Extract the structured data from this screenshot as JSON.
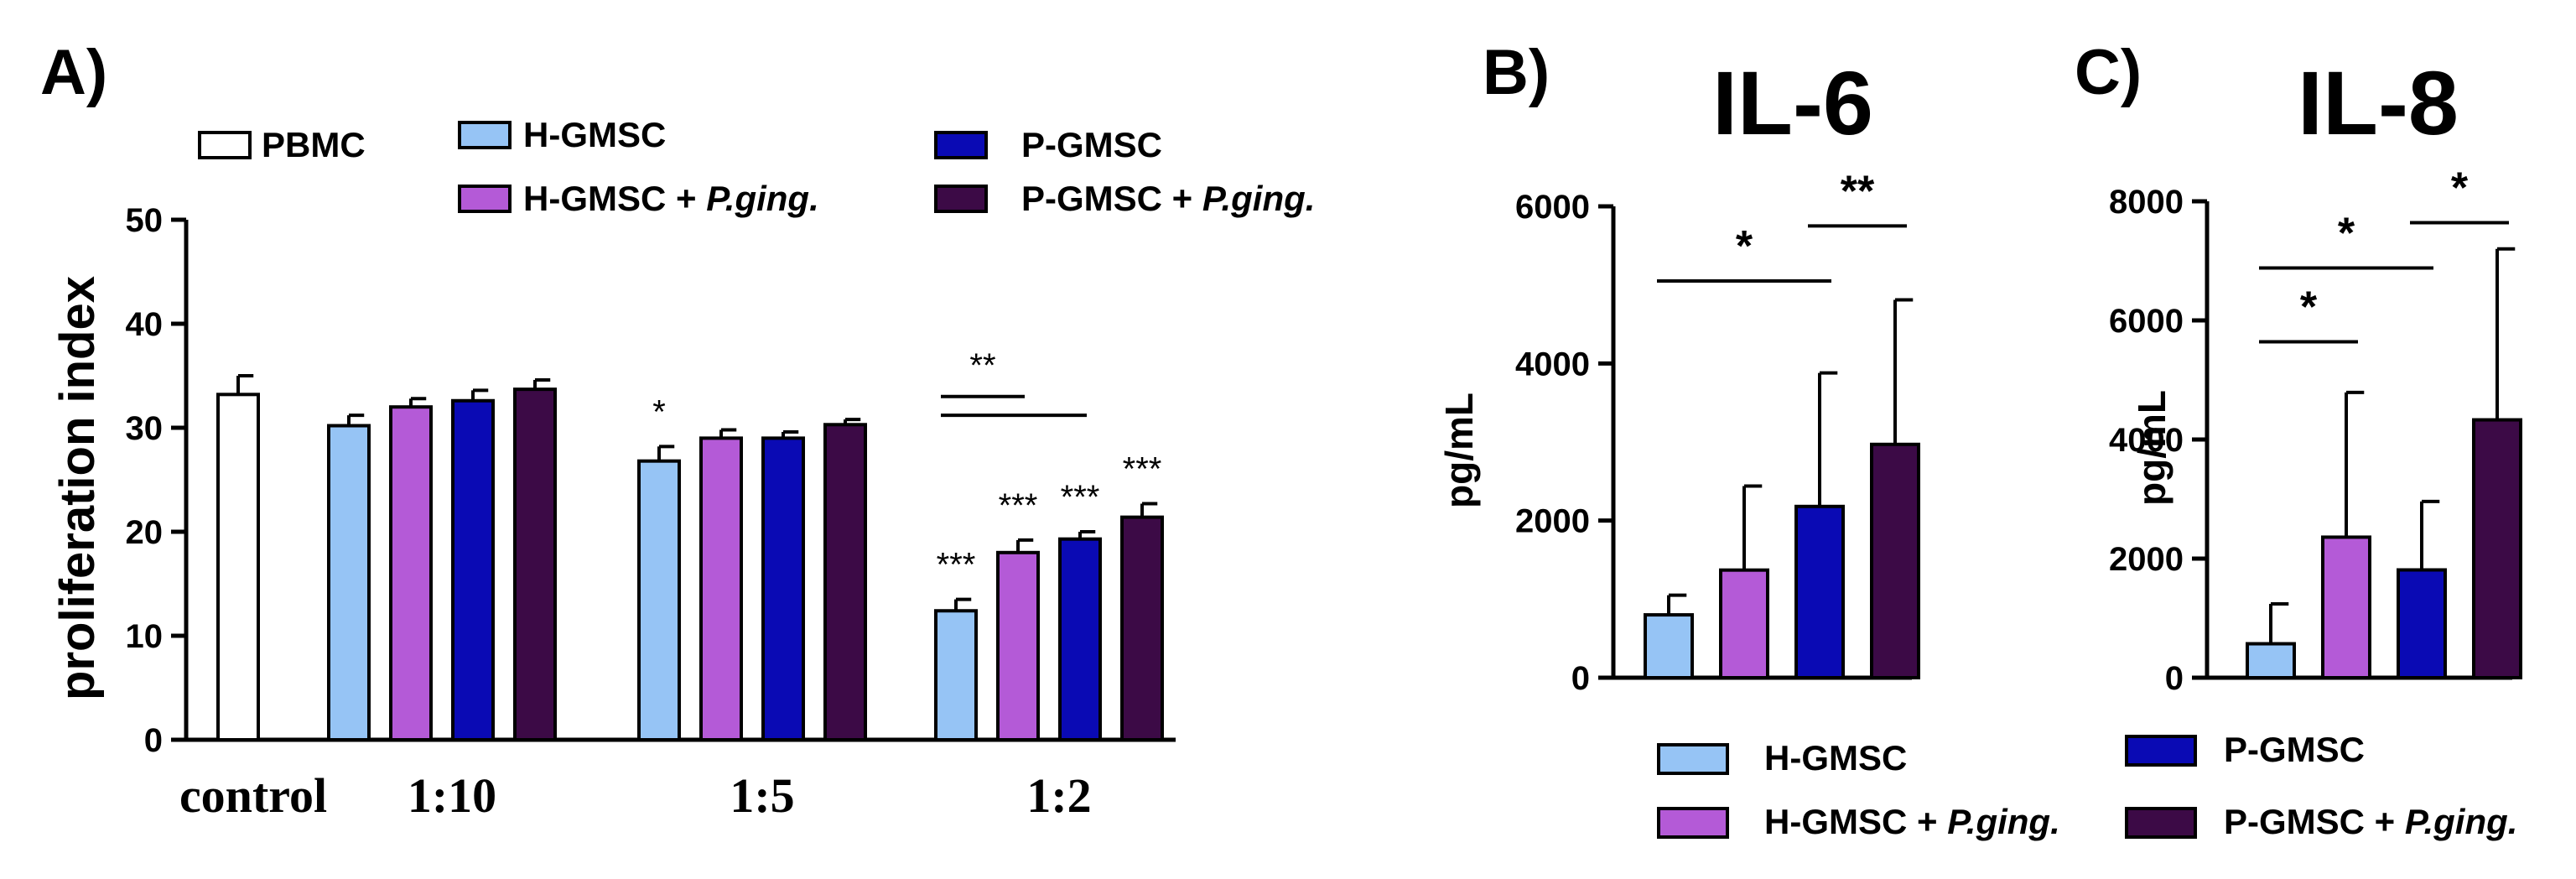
{
  "colors": {
    "PBMC": "#ffffff",
    "H-GMSC": "#96c4f5",
    "H-GMSC + P.ging.": "#b45ad7",
    "P-GMSC": "#0a0ab4",
    "P-GMSC + P.ging.": "#3c0a46"
  },
  "panels": {
    "A": "A)",
    "B": "B)",
    "C": "C)"
  },
  "legend_A": [
    {
      "key": "PBMC",
      "label": "PBMC",
      "italic": ""
    },
    {
      "key": "H-GMSC",
      "label": "H-GMSC",
      "italic": ""
    },
    {
      "key": "H-GMSC + P.ging.",
      "label": "H-GMSC + ",
      "italic": "P.ging."
    },
    {
      "key": "P-GMSC",
      "label": "P-GMSC",
      "italic": ""
    },
    {
      "key": "P-GMSC + P.ging.",
      "label": "P-GMSC + ",
      "italic": "P.ging."
    }
  ],
  "legend_BC": [
    {
      "key": "H-GMSC",
      "label": "H-GMSC",
      "italic": ""
    },
    {
      "key": "H-GMSC + P.ging.",
      "label": "H-GMSC + ",
      "italic": "P.ging."
    },
    {
      "key": "P-GMSC",
      "label": "P-GMSC",
      "italic": ""
    },
    {
      "key": "P-GMSC + P.ging.",
      "label": "P-GMSC + ",
      "italic": "P.ging."
    }
  ],
  "chart_data": [
    {
      "id": "A",
      "type": "bar",
      "title": "",
      "xlabel": "",
      "ylabel": "proliferation index",
      "ylim": [
        0,
        50
      ],
      "yticks": [
        0,
        10,
        20,
        30,
        40,
        50
      ],
      "tick_labels": [
        "0",
        "10",
        "20",
        "30",
        "40",
        "50"
      ],
      "categories": [
        "control",
        "1:10",
        "1:5",
        "1:2"
      ],
      "groups": [
        {
          "category": "control",
          "bars": [
            {
              "series": "PBMC",
              "value": 33.2,
              "err": 1.8,
              "sig": ""
            }
          ]
        },
        {
          "category": "1:10",
          "bars": [
            {
              "series": "H-GMSC",
              "value": 30.2,
              "err": 1.0,
              "sig": ""
            },
            {
              "series": "H-GMSC + P.ging.",
              "value": 32.0,
              "err": 0.8,
              "sig": ""
            },
            {
              "series": "P-GMSC",
              "value": 32.6,
              "err": 1.0,
              "sig": ""
            },
            {
              "series": "P-GMSC + P.ging.",
              "value": 33.7,
              "err": 0.9,
              "sig": ""
            }
          ]
        },
        {
          "category": "1:5",
          "bars": [
            {
              "series": "H-GMSC",
              "value": 26.8,
              "err": 1.4,
              "sig": "*"
            },
            {
              "series": "H-GMSC + P.ging.",
              "value": 29.0,
              "err": 0.8,
              "sig": ""
            },
            {
              "series": "P-GMSC",
              "value": 29.0,
              "err": 0.6,
              "sig": ""
            },
            {
              "series": "P-GMSC + P.ging.",
              "value": 30.3,
              "err": 0.5,
              "sig": ""
            }
          ]
        },
        {
          "category": "1:2",
          "bars": [
            {
              "series": "H-GMSC",
              "value": 12.4,
              "err": 1.1,
              "sig": "***"
            },
            {
              "series": "H-GMSC + P.ging.",
              "value": 18.0,
              "err": 1.2,
              "sig": "***"
            },
            {
              "series": "P-GMSC",
              "value": 19.3,
              "err": 0.7,
              "sig": "***"
            },
            {
              "series": "P-GMSC + P.ging.",
              "value": 21.4,
              "err": 1.3,
              "sig": "***"
            }
          ]
        }
      ],
      "brackets": [
        {
          "from": {
            "group": 3,
            "bar": 0
          },
          "to": {
            "group": 3,
            "bar": 1
          },
          "level": 33,
          "label": "**"
        },
        {
          "from": {
            "group": 3,
            "bar": 0
          },
          "to": {
            "group": 3,
            "bar": 2
          },
          "level": 31.2,
          "label": ""
        }
      ]
    },
    {
      "id": "B",
      "type": "bar",
      "title": "IL-6",
      "xlabel": "",
      "ylabel": "pg/mL",
      "ylim": [
        0,
        6000
      ],
      "yticks": [
        0,
        2000,
        4000,
        6000
      ],
      "tick_labels": [
        "0",
        "2000",
        "4000",
        "6000"
      ],
      "series": [
        {
          "name": "H-GMSC",
          "value": 800,
          "err": 250
        },
        {
          "name": "H-GMSC + P.ging.",
          "value": 1370,
          "err": 1070
        },
        {
          "name": "P-GMSC",
          "value": 2180,
          "err": 1700
        },
        {
          "name": "P-GMSC + P.ging.",
          "value": 2970,
          "err": 1840
        }
      ],
      "brackets": [
        {
          "from": 0,
          "to": 2,
          "level": 5050,
          "label": "*"
        },
        {
          "from": 2,
          "to": 3,
          "level": 5750,
          "label": "**"
        }
      ]
    },
    {
      "id": "C",
      "type": "bar",
      "title": "IL-8",
      "xlabel": "",
      "ylabel": "pg/mL",
      "ylim": [
        0,
        8000
      ],
      "yticks": [
        0,
        2000,
        4000,
        6000,
        8000
      ],
      "tick_labels": [
        "0",
        "2000",
        "4000",
        "6000",
        "8000"
      ],
      "series": [
        {
          "name": "H-GMSC",
          "value": 570,
          "err": 670
        },
        {
          "name": "H-GMSC + P.ging.",
          "value": 2360,
          "err": 2430
        },
        {
          "name": "P-GMSC",
          "value": 1810,
          "err": 1150
        },
        {
          "name": "P-GMSC + P.ging.",
          "value": 4330,
          "err": 2870
        }
      ],
      "brackets": [
        {
          "from": 0,
          "to": 1,
          "level": 5640,
          "label": "*"
        },
        {
          "from": 0,
          "to": 2,
          "level": 6880,
          "label": "*"
        },
        {
          "from": 2,
          "to": 3,
          "level": 7640,
          "label": "*"
        }
      ]
    }
  ]
}
